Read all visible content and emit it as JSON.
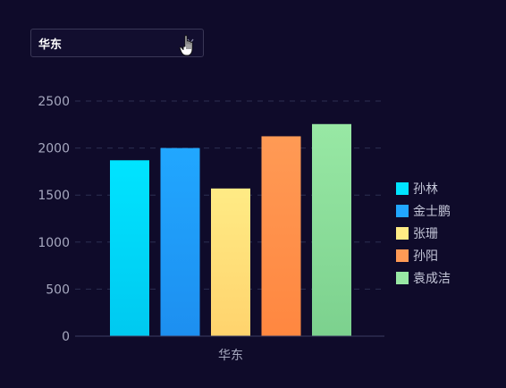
{
  "filter": {
    "selected": "华东"
  },
  "colors": {
    "background": "#0f0b2a",
    "axis": "#3b3e63",
    "grid": "#2c2f52",
    "tick_text": "#a6a8bf",
    "legend_text": "#c4c6d8"
  },
  "chart_data": {
    "type": "bar",
    "categories": [
      "华东"
    ],
    "series": [
      {
        "name": "孙林",
        "values": [
          1870
        ],
        "color_top": "#00e4ff",
        "color_bottom": "#00c9f0"
      },
      {
        "name": "金士鹏",
        "values": [
          2000
        ],
        "color_top": "#21a7ff",
        "color_bottom": "#1d8ff0"
      },
      {
        "name": "张珊",
        "values": [
          1570
        ],
        "color_top": "#ffeb85",
        "color_bottom": "#ffd36d"
      },
      {
        "name": "孙阳",
        "values": [
          2125
        ],
        "color_top": "#ff9a55",
        "color_bottom": "#ff8740"
      },
      {
        "name": "袁成洁",
        "values": [
          2255
        ],
        "color_top": "#98e8a4",
        "color_bottom": "#7cd18e"
      }
    ],
    "y_ticks": [
      0,
      500,
      1000,
      1500,
      2000,
      2500
    ],
    "ylim": [
      0,
      2500
    ],
    "grid": true,
    "legend_position": "right"
  }
}
